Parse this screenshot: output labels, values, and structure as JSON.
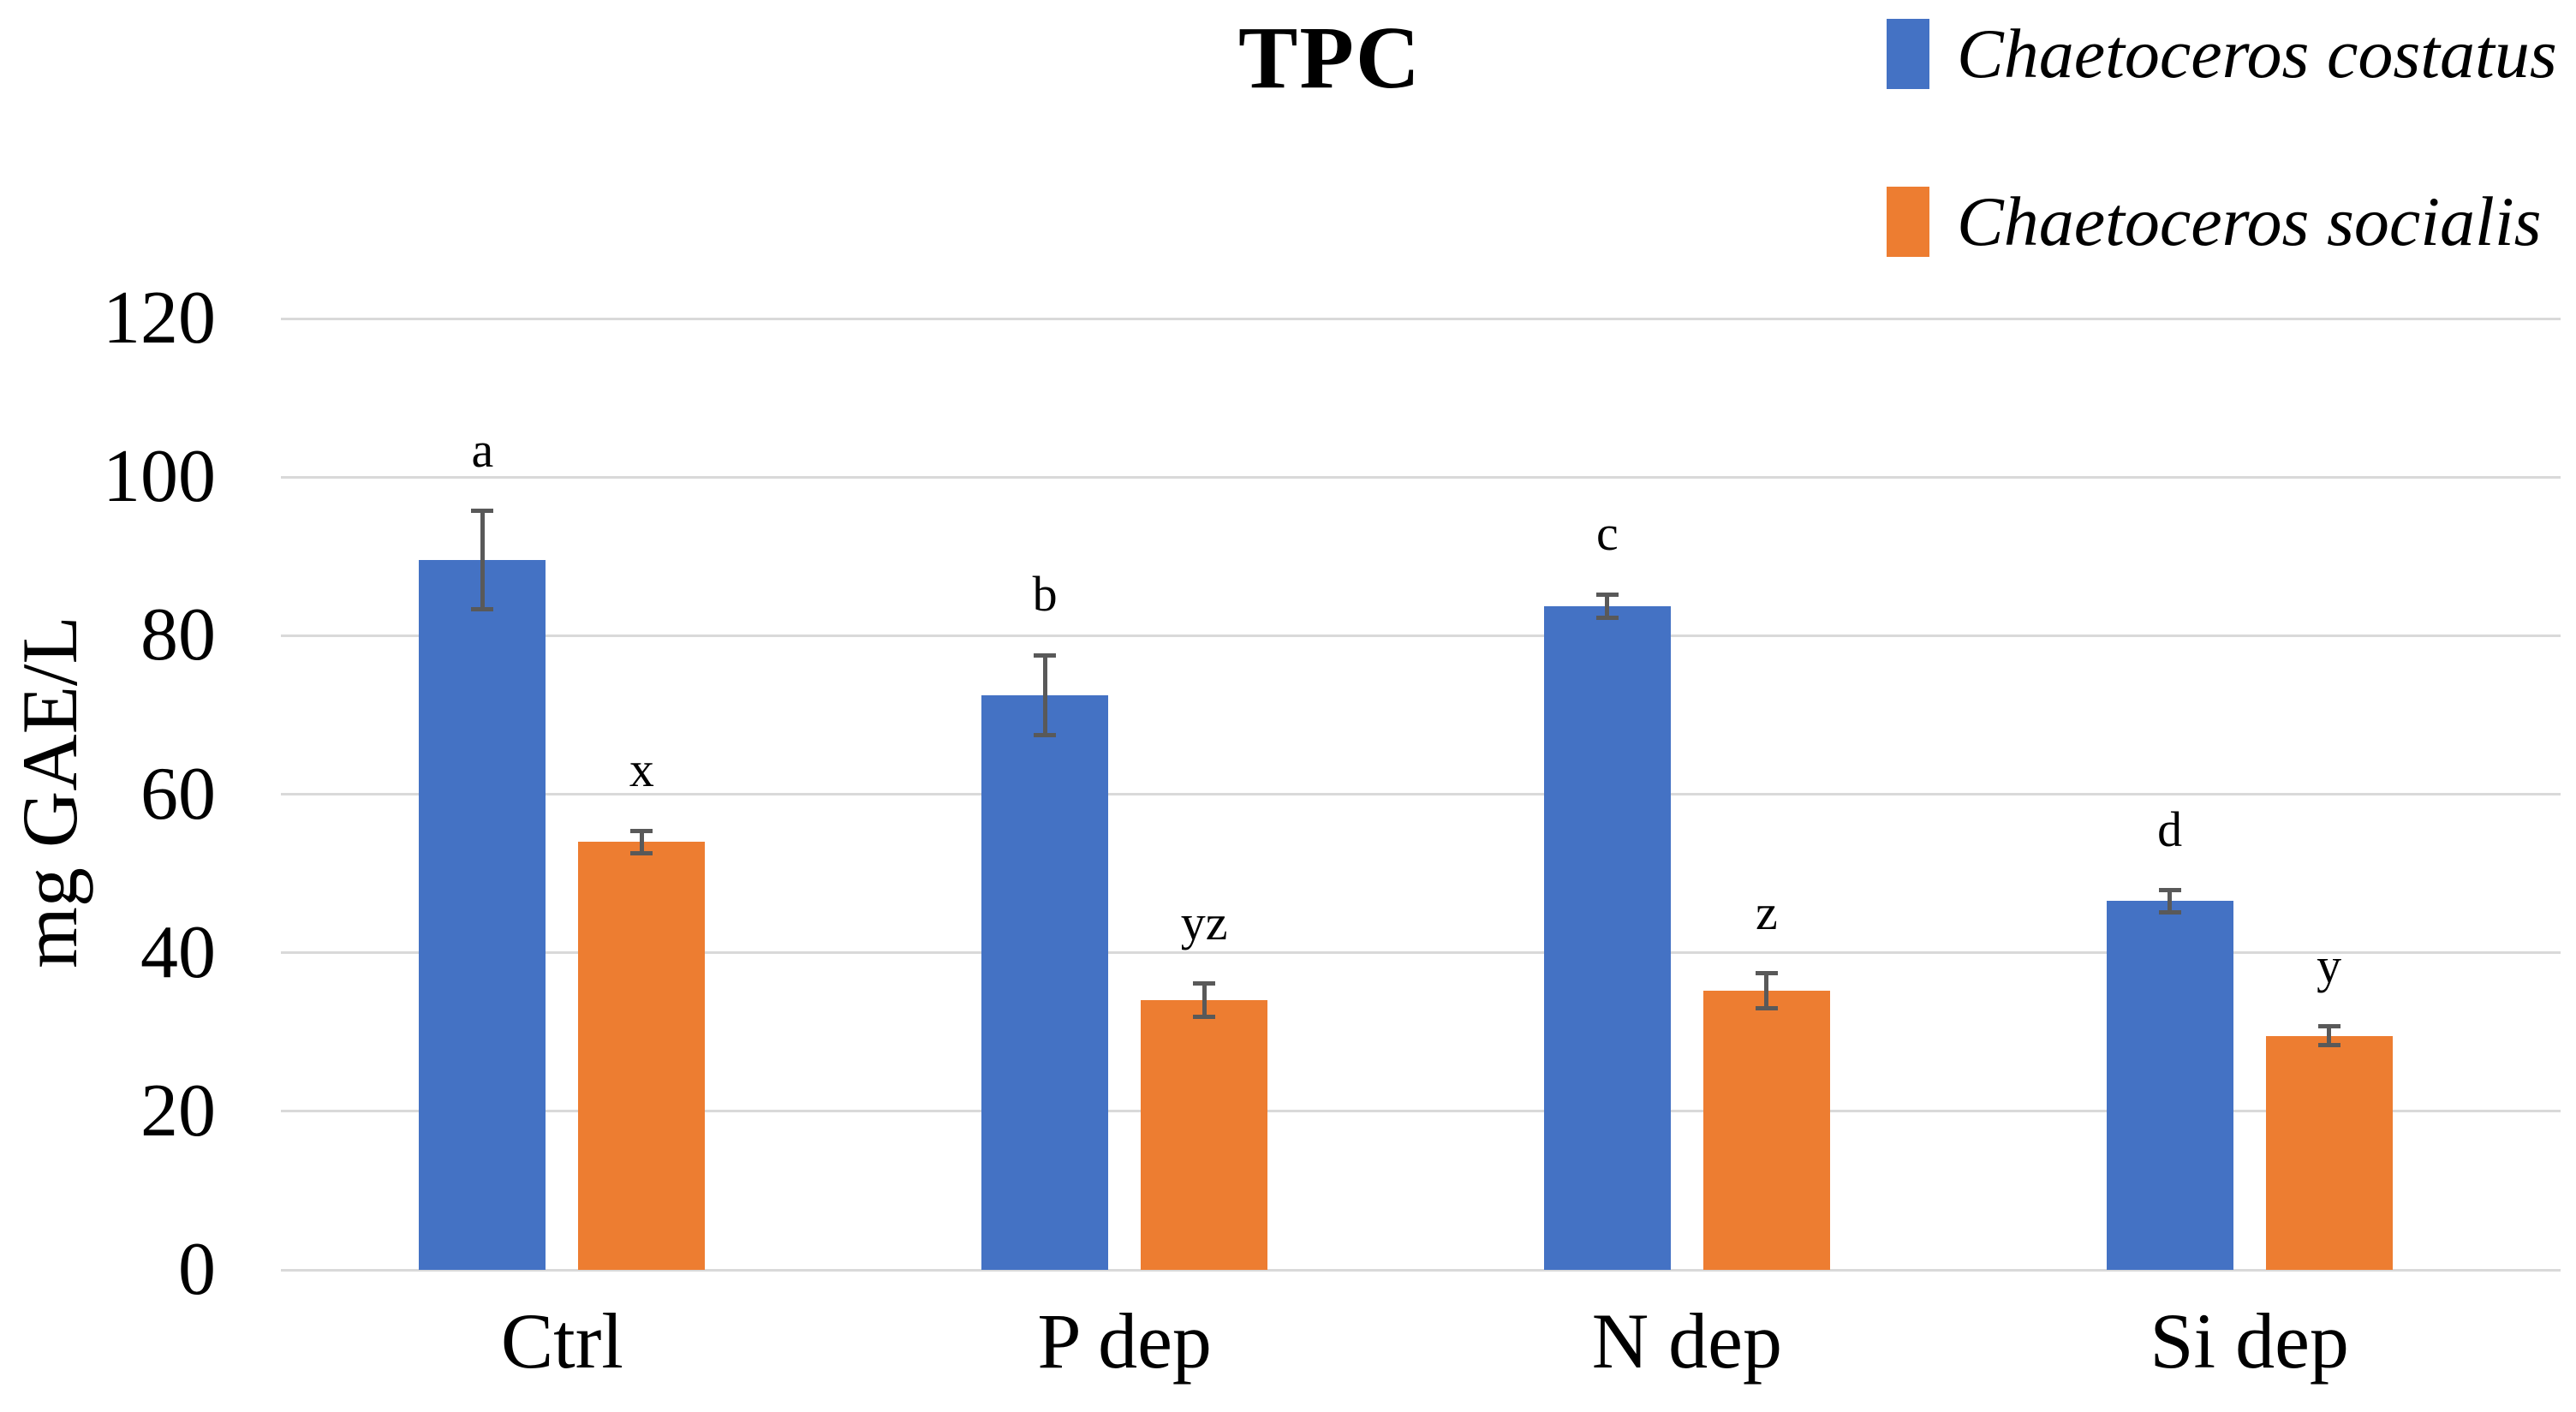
{
  "chart_data": {
    "type": "bar",
    "title": "TPC",
    "ylabel": "mg GAE/L",
    "xlabel": "",
    "categories": [
      "Ctrl",
      "P dep",
      "N dep",
      "Si dep"
    ],
    "series": [
      {
        "name": "Chaetoceros costatus",
        "color": "#4472C4",
        "values": [
          89.5,
          72.5,
          83.7,
          46.5
        ],
        "errors": [
          6.2,
          5.0,
          1.5,
          1.4
        ],
        "letters": [
          "a",
          "b",
          "c",
          "d"
        ]
      },
      {
        "name": "Chaetoceros socialis",
        "color": "#ED7D31",
        "values": [
          54.0,
          34.0,
          35.2,
          29.5
        ],
        "errors": [
          1.4,
          2.1,
          2.2,
          1.2
        ],
        "letters": [
          "x",
          "yz",
          "z",
          "y"
        ]
      }
    ],
    "ylim": [
      0,
      120
    ],
    "yticks": [
      0,
      20,
      40,
      60,
      80,
      100,
      120
    ],
    "grid": true,
    "legend_position": "top-right",
    "gridline_color": "#D9D9D9",
    "error_bar_color": "#595959"
  }
}
